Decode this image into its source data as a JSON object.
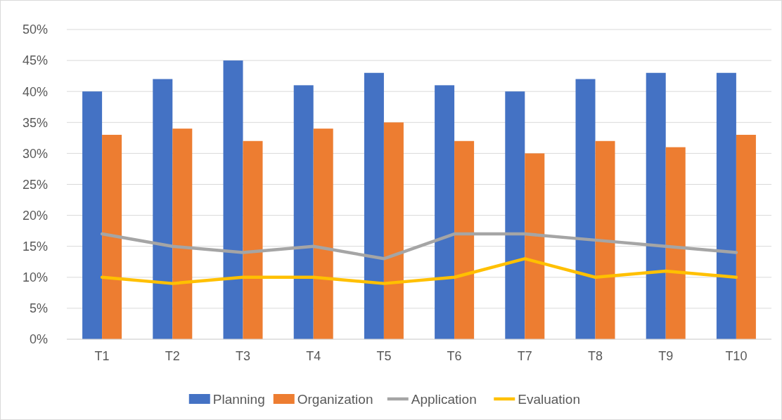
{
  "chart_data": {
    "type": "bar",
    "categories": [
      "T1",
      "T2",
      "T3",
      "T4",
      "T5",
      "T6",
      "T7",
      "T8",
      "T9",
      "T10"
    ],
    "series": [
      {
        "name": "Planning",
        "color": "#4472c4",
        "values": [
          40,
          42,
          45,
          41,
          43,
          41,
          40,
          42,
          43,
          43
        ]
      },
      {
        "name": "Organization",
        "color": "#ed7d31",
        "values": [
          33,
          34,
          32,
          34,
          35,
          32,
          30,
          32,
          31,
          33
        ]
      },
      {
        "name": "Application",
        "type": "line",
        "color": "#a5a5a5",
        "values": [
          17,
          15,
          14,
          15,
          13,
          17,
          17,
          16,
          15,
          14
        ]
      },
      {
        "name": "Evaluation",
        "type": "line",
        "color": "#ffc000",
        "values": [
          10,
          9,
          10,
          10,
          9,
          10,
          13,
          10,
          11,
          10
        ]
      }
    ],
    "ylim": [
      0,
      50
    ],
    "yticks": [
      {
        "value": 0,
        "label": "0%"
      },
      {
        "value": 5,
        "label": "5%"
      },
      {
        "value": 10,
        "label": "10%"
      },
      {
        "value": 15,
        "label": "15%"
      },
      {
        "value": 20,
        "label": "20%"
      },
      {
        "value": 25,
        "label": "25%"
      },
      {
        "value": 30,
        "label": "30%"
      },
      {
        "value": 35,
        "label": "35%"
      },
      {
        "value": 40,
        "label": "40%"
      },
      {
        "value": 45,
        "label": "45%"
      },
      {
        "value": 50,
        "label": "50%"
      }
    ],
    "grid": "y",
    "legend": "bottom"
  }
}
